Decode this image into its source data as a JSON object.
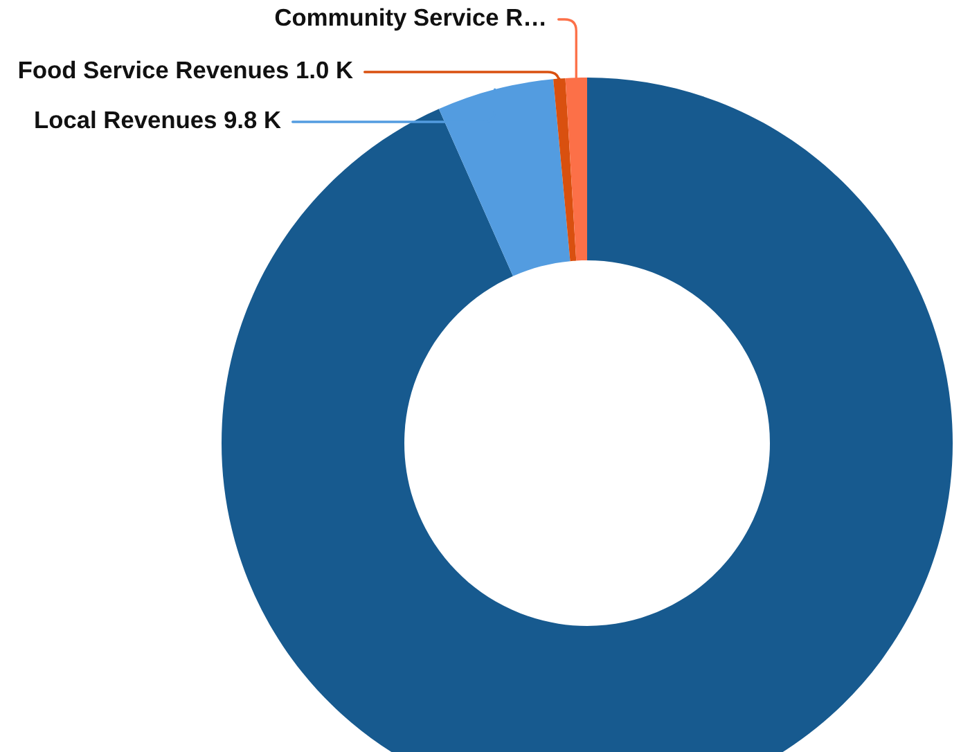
{
  "chart_data": {
    "type": "donut",
    "categories": [
      null,
      "Local Revenues",
      "Food Service Revenues",
      "Community Service R…"
    ],
    "values": [
      177,
      9.8,
      1.0,
      1.8
    ],
    "value_labels": [
      null,
      "9.8 K",
      "1.0 K",
      null
    ],
    "colors": [
      "#175a8f",
      "#539ce0",
      "#d9500f",
      "#fc7048"
    ]
  }
}
